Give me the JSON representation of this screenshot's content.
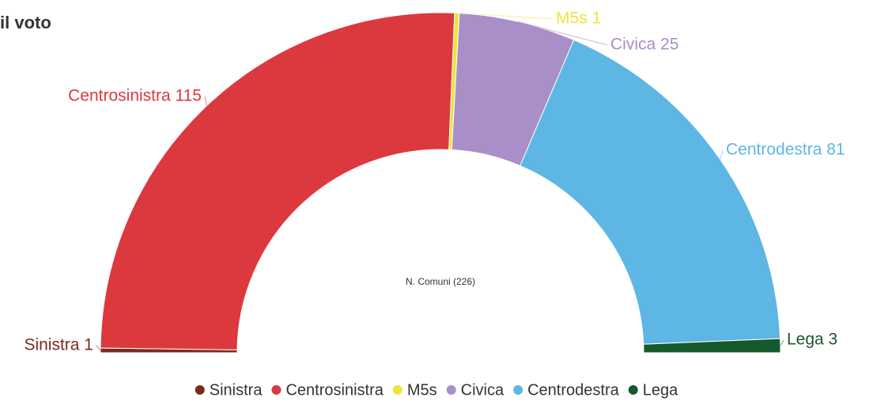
{
  "chart_data": {
    "type": "donut",
    "title": "il voto",
    "center_label": "N. Comuni (226)",
    "categories": [
      "Sinistra",
      "Centrosinistra",
      "M5s",
      "Civica",
      "Centrodestra",
      "Lega"
    ],
    "values": [
      1,
      115,
      1,
      25,
      81,
      3
    ],
    "value_labels": [
      "Sinistra 1",
      "Centrosinistra 115",
      "M5s 1",
      "Civica 25",
      "Centrodestra 81",
      "Lega 3"
    ],
    "colors": [
      "#7b2a1f",
      "#dc393f",
      "#f0e43a",
      "#a98fc8",
      "#5db6e4",
      "#15592d"
    ],
    "legend": "bottom"
  }
}
